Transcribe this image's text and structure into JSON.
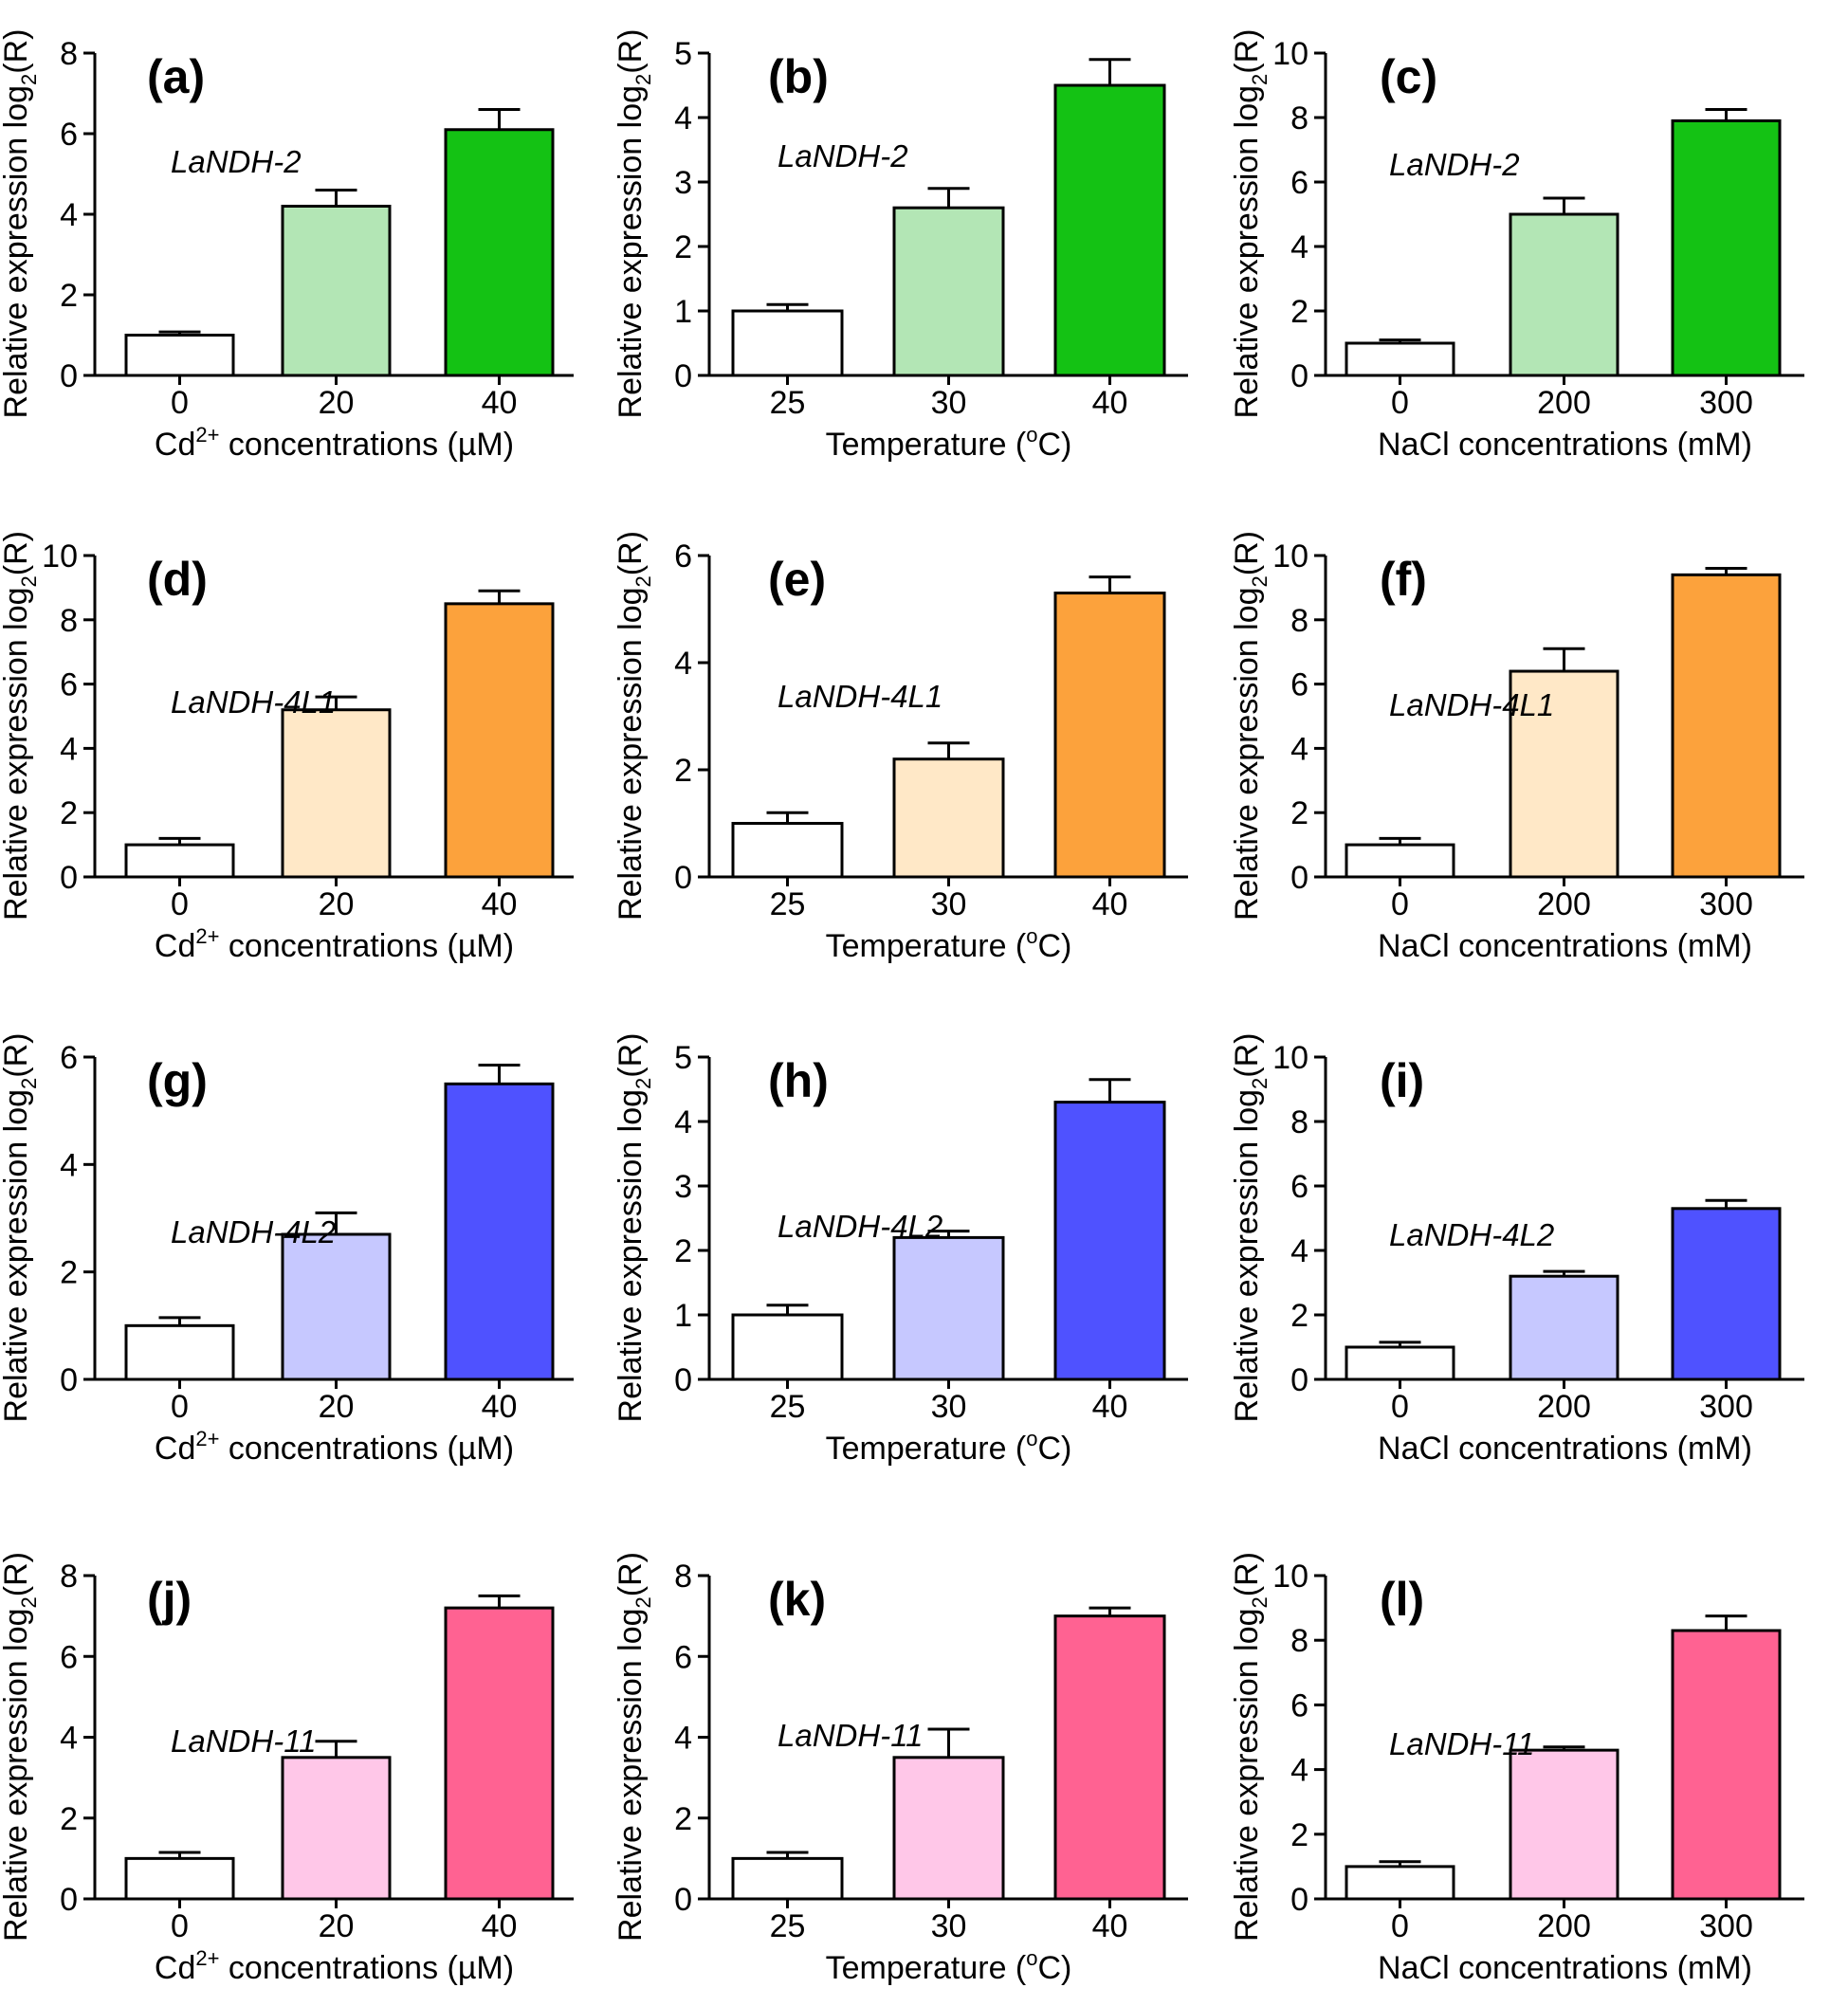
{
  "figure": {
    "ylabel_main": "Relative expression log",
    "ylabel_sub": "2",
    "ylabel_tail": "(R)"
  },
  "chart_data": [
    {
      "panel": "(a)",
      "gene": "LaNDH-2",
      "type": "bar",
      "categories": [
        "0",
        "20",
        "40"
      ],
      "values": [
        1.0,
        4.2,
        6.1
      ],
      "errors": [
        0.08,
        0.4,
        0.5
      ],
      "colors": [
        "#ffffff",
        "#b3e6b5",
        "#14c214"
      ],
      "ylim": [
        0,
        8
      ],
      "yticks": [
        "0",
        "2",
        "4",
        "6",
        "8"
      ],
      "xlabel_pre": "Cd",
      "xlabel_sup": "2+",
      "xlabel_post": " concentrations (µM)"
    },
    {
      "panel": "(b)",
      "gene": "LaNDH-2",
      "type": "bar",
      "categories": [
        "25",
        "30",
        "40"
      ],
      "values": [
        1.0,
        2.6,
        4.5
      ],
      "errors": [
        0.1,
        0.3,
        0.4
      ],
      "colors": [
        "#ffffff",
        "#b3e6b5",
        "#14c214"
      ],
      "ylim": [
        0,
        5
      ],
      "yticks": [
        "0",
        "1",
        "2",
        "3",
        "4",
        "5"
      ],
      "xlabel_pre": "Temperature (",
      "xlabel_sup": "o",
      "xlabel_post": "C)"
    },
    {
      "panel": "(c)",
      "gene": "LaNDH-2",
      "type": "bar",
      "categories": [
        "0",
        "200",
        "300"
      ],
      "values": [
        1.0,
        5.0,
        7.9
      ],
      "errors": [
        0.1,
        0.5,
        0.35
      ],
      "colors": [
        "#ffffff",
        "#b3e6b5",
        "#14c214"
      ],
      "ylim": [
        0,
        10
      ],
      "yticks": [
        "0",
        "2",
        "4",
        "6",
        "8",
        "10"
      ],
      "xlabel_pre": "NaCl concentrations (mM)",
      "xlabel_sup": "",
      "xlabel_post": ""
    },
    {
      "panel": "(d)",
      "gene": "LaNDH-4L1",
      "type": "bar",
      "categories": [
        "0",
        "20",
        "40"
      ],
      "values": [
        1.0,
        5.2,
        8.5
      ],
      "errors": [
        0.2,
        0.4,
        0.4
      ],
      "colors": [
        "#ffffff",
        "#ffe8c7",
        "#fca23c"
      ],
      "ylim": [
        0,
        10
      ],
      "yticks": [
        "0",
        "2",
        "4",
        "6",
        "8",
        "10"
      ],
      "xlabel_pre": "Cd",
      "xlabel_sup": "2+",
      "xlabel_post": " concentrations (µM)"
    },
    {
      "panel": "(e)",
      "gene": "LaNDH-4L1",
      "type": "bar",
      "categories": [
        "25",
        "30",
        "40"
      ],
      "values": [
        1.0,
        2.2,
        5.3
      ],
      "errors": [
        0.2,
        0.3,
        0.3
      ],
      "colors": [
        "#ffffff",
        "#ffe8c7",
        "#fca23c"
      ],
      "ylim": [
        0,
        6
      ],
      "yticks": [
        "0",
        "2",
        "4",
        "6"
      ],
      "xlabel_pre": "Temperature (",
      "xlabel_sup": "o",
      "xlabel_post": "C)"
    },
    {
      "panel": "(f)",
      "gene": "LaNDH-4L1",
      "type": "bar",
      "categories": [
        "0",
        "200",
        "300"
      ],
      "values": [
        1.0,
        6.4,
        9.4
      ],
      "errors": [
        0.2,
        0.7,
        0.2
      ],
      "colors": [
        "#ffffff",
        "#ffe8c7",
        "#fca23c"
      ],
      "ylim": [
        0,
        10
      ],
      "yticks": [
        "0",
        "2",
        "4",
        "6",
        "8",
        "10"
      ],
      "xlabel_pre": "NaCl concentrations (mM)",
      "xlabel_sup": "",
      "xlabel_post": ""
    },
    {
      "panel": "(g)",
      "gene": "LaNDH-4L2",
      "type": "bar",
      "categories": [
        "0",
        "20",
        "40"
      ],
      "values": [
        1.0,
        2.7,
        5.5
      ],
      "errors": [
        0.15,
        0.4,
        0.35
      ],
      "colors": [
        "#ffffff",
        "#c6c8ff",
        "#4f52ff"
      ],
      "ylim": [
        0,
        6
      ],
      "yticks": [
        "0",
        "2",
        "4",
        "6"
      ],
      "xlabel_pre": "Cd",
      "xlabel_sup": "2+",
      "xlabel_post": " concentrations (µM)"
    },
    {
      "panel": "(h)",
      "gene": "LaNDH-4L2",
      "type": "bar",
      "categories": [
        "25",
        "30",
        "40"
      ],
      "values": [
        1.0,
        2.2,
        4.3
      ],
      "errors": [
        0.15,
        0.1,
        0.35
      ],
      "colors": [
        "#ffffff",
        "#c6c8ff",
        "#4f52ff"
      ],
      "ylim": [
        0,
        5
      ],
      "yticks": [
        "0",
        "1",
        "2",
        "3",
        "4",
        "5"
      ],
      "xlabel_pre": "Temperature (",
      "xlabel_sup": "o",
      "xlabel_post": "C)"
    },
    {
      "panel": "(i)",
      "gene": "LaNDH-4L2",
      "type": "bar",
      "categories": [
        "0",
        "200",
        "300"
      ],
      "values": [
        1.0,
        3.2,
        5.3
      ],
      "errors": [
        0.15,
        0.15,
        0.25
      ],
      "colors": [
        "#ffffff",
        "#c6c8ff",
        "#4f52ff"
      ],
      "ylim": [
        0,
        10
      ],
      "yticks": [
        "0",
        "2",
        "4",
        "6",
        "8",
        "10"
      ],
      "xlabel_pre": "NaCl concentrations (mM)",
      "xlabel_sup": "",
      "xlabel_post": ""
    },
    {
      "panel": "(j)",
      "gene": "LaNDH-11",
      "type": "bar",
      "categories": [
        "0",
        "20",
        "40"
      ],
      "values": [
        1.0,
        3.5,
        7.2
      ],
      "errors": [
        0.15,
        0.4,
        0.3
      ],
      "colors": [
        "#ffffff",
        "#ffc7e8",
        "#ff6292"
      ],
      "ylim": [
        0,
        8
      ],
      "yticks": [
        "0",
        "2",
        "4",
        "6",
        "8"
      ],
      "xlabel_pre": "Cd",
      "xlabel_sup": "2+",
      "xlabel_post": " concentrations (µM)"
    },
    {
      "panel": "(k)",
      "gene": "LaNDH-11",
      "type": "bar",
      "categories": [
        "25",
        "30",
        "40"
      ],
      "values": [
        1.0,
        3.5,
        7.0
      ],
      "errors": [
        0.15,
        0.7,
        0.2
      ],
      "colors": [
        "#ffffff",
        "#ffc7e8",
        "#ff6292"
      ],
      "ylim": [
        0,
        8
      ],
      "yticks": [
        "0",
        "2",
        "4",
        "6",
        "8"
      ],
      "xlabel_pre": "Temperature (",
      "xlabel_sup": "o",
      "xlabel_post": "C)"
    },
    {
      "panel": "(l)",
      "gene": "LaNDH-11",
      "type": "bar",
      "categories": [
        "0",
        "200",
        "300"
      ],
      "values": [
        1.0,
        4.6,
        8.3
      ],
      "errors": [
        0.15,
        0.1,
        0.45
      ],
      "colors": [
        "#ffffff",
        "#ffc7e8",
        "#ff6292"
      ],
      "ylim": [
        0,
        10
      ],
      "yticks": [
        "0",
        "2",
        "4",
        "6",
        "8",
        "10"
      ],
      "xlabel_pre": "NaCl concentrations (mM)",
      "xlabel_sup": "",
      "xlabel_post": ""
    }
  ]
}
